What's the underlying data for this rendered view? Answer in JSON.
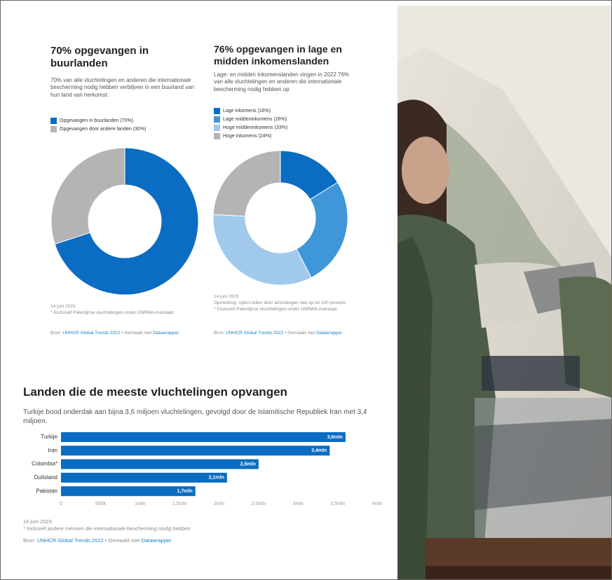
{
  "chart_data": [
    {
      "type": "donut",
      "title": "70% opgevangen in buurlanden",
      "subtitle": "70% van alle vluchtelingen en anderen die internationale bescherming nodig hebben verblijven in een buurland van hun land van herkomst.",
      "categories": [
        "Opgevangen in buurlanden (70%)",
        "Opgevangen door andere landen (30%)"
      ],
      "values": [
        70,
        30
      ],
      "colors": [
        "#0a6cc2",
        "#b4b4b4"
      ],
      "notes": [
        "14 juni 2023",
        "* Exclusief Palestijnse vluchtelingen onder UNRWA-mandaat"
      ],
      "source": {
        "label": "Bron:",
        "link": "UNHCR Global Trends 2022",
        "made": "• Gemaakt met",
        "tool": "Datawrapper"
      }
    },
    {
      "type": "donut",
      "title": "76% opgevangen in lage en midden inkomenslanden",
      "subtitle": "Lage- en midden inkomenslanden vingen in 2022 76% van alle vluchtelingen en anderen die internationale bescherming nodig hebben op",
      "categories": [
        "Lage inkomens (16%)",
        "Lage middeninkomens (26%)",
        "Hoge middeninkomens (33%)",
        "Hoge inkomens (24%)"
      ],
      "values": [
        16,
        26,
        33,
        24
      ],
      "colors": [
        "#0a6cc2",
        "#3f97d9",
        "#a0c9ec",
        "#b4b4b4"
      ],
      "notes": [
        "14 juni 2023",
        "Opmerking: cijfers tellen door afrondingen niet op tot 100 procent.",
        "* Exclusief Palestijnse vluchtelingen onder UNRWA-mandaat"
      ],
      "source": {
        "label": "Bron:",
        "link": "UNHCR Global Trends 2022",
        "made": "• Gemaakt met",
        "tool": "Datawrapper"
      }
    },
    {
      "type": "bar",
      "title": "Landen die de meeste vluchtelingen opvangen",
      "subtitle": "Turkije bood onderdak aan bijna 3,6 miljoen vluchtelingen, gevolgd door de Islamitische Republiek Iran met 3,4 miljoen.",
      "categories": [
        "Turkije",
        "Iran",
        "Colombia*",
        "Duitsland",
        "Pakistan"
      ],
      "values": [
        3.6,
        3.4,
        2.5,
        2.1,
        1.7
      ],
      "value_labels": [
        "3,6mln",
        "3,4mln",
        "2,5mln",
        "2,1mln",
        "1,7mln"
      ],
      "color": "#0a6cc2",
      "xlim": [
        0,
        4
      ],
      "xticks": [
        0,
        {
          "value": 0.5,
          "label": "500k"
        },
        {
          "value": 1,
          "label": "1mln"
        },
        {
          "value": 1.5,
          "label": "1,5mln"
        },
        {
          "value": 2,
          "label": "2mln"
        },
        {
          "value": 2.5,
          "label": "2,5mln"
        },
        {
          "value": 3,
          "label": "3mln"
        },
        {
          "value": 3.5,
          "label": "3,5mln"
        },
        {
          "value": 4,
          "label": "4mln"
        }
      ],
      "notes": [
        "14 juni 2023",
        "* Inclusief andere mensen die internationale bescherming nodig hebben"
      ],
      "source": {
        "label": "Bron:",
        "link": "UNHCR Global Trends 2022",
        "made": "• Gemaakt met",
        "tool": "Datawrapper"
      }
    }
  ]
}
